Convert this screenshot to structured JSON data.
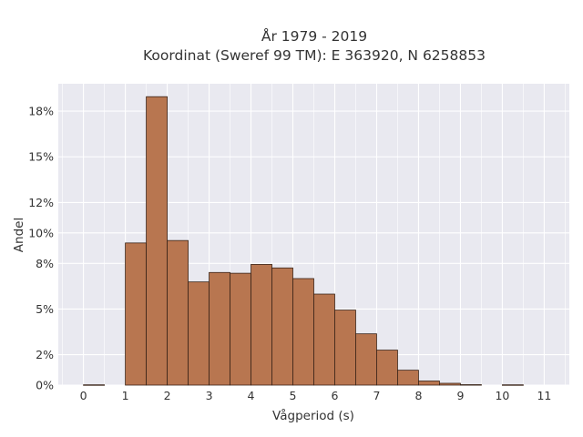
{
  "chart_data": {
    "type": "bar",
    "title": "År 1979 - 2019",
    "subtitle": "Koordinat (Sweref 99 TM): E 363920, N 6258853",
    "xlabel": "Vågperiod (s)",
    "ylabel": "Andel",
    "x_ticks": [
      "0",
      "1",
      "2",
      "3",
      "4",
      "5",
      "6",
      "7",
      "8",
      "9",
      "10",
      "11"
    ],
    "y_ticks": [
      "0%",
      "2%",
      "5%",
      "8%",
      "10%",
      "12%",
      "15%",
      "18%"
    ],
    "xlim": [
      -0.6,
      11.6
    ],
    "ylim": [
      0,
      0.198
    ],
    "bin_width": 0.5,
    "bins": [
      {
        "x0": 0.0,
        "value": 0.0002
      },
      {
        "x0": 1.0,
        "value": 0.0934
      },
      {
        "x0": 1.5,
        "value": 0.1895
      },
      {
        "x0": 2.0,
        "value": 0.095
      },
      {
        "x0": 2.5,
        "value": 0.0678
      },
      {
        "x0": 3.0,
        "value": 0.074
      },
      {
        "x0": 3.5,
        "value": 0.0735
      },
      {
        "x0": 4.0,
        "value": 0.0793
      },
      {
        "x0": 4.5,
        "value": 0.077
      },
      {
        "x0": 5.0,
        "value": 0.07
      },
      {
        "x0": 5.5,
        "value": 0.0598
      },
      {
        "x0": 6.0,
        "value": 0.0493
      },
      {
        "x0": 6.5,
        "value": 0.0337
      },
      {
        "x0": 7.0,
        "value": 0.023
      },
      {
        "x0": 7.5,
        "value": 0.0098
      },
      {
        "x0": 8.0,
        "value": 0.0027
      },
      {
        "x0": 8.5,
        "value": 0.0012
      },
      {
        "x0": 9.0,
        "value": 0.0003
      },
      {
        "x0": 10.0,
        "value": 0.0002
      }
    ],
    "grid": true,
    "colors": {
      "plot_background": "#e9e9f0",
      "grid": "#ffffff",
      "bar_fill": "#b87650",
      "bar_edge": "#3a2418"
    }
  }
}
